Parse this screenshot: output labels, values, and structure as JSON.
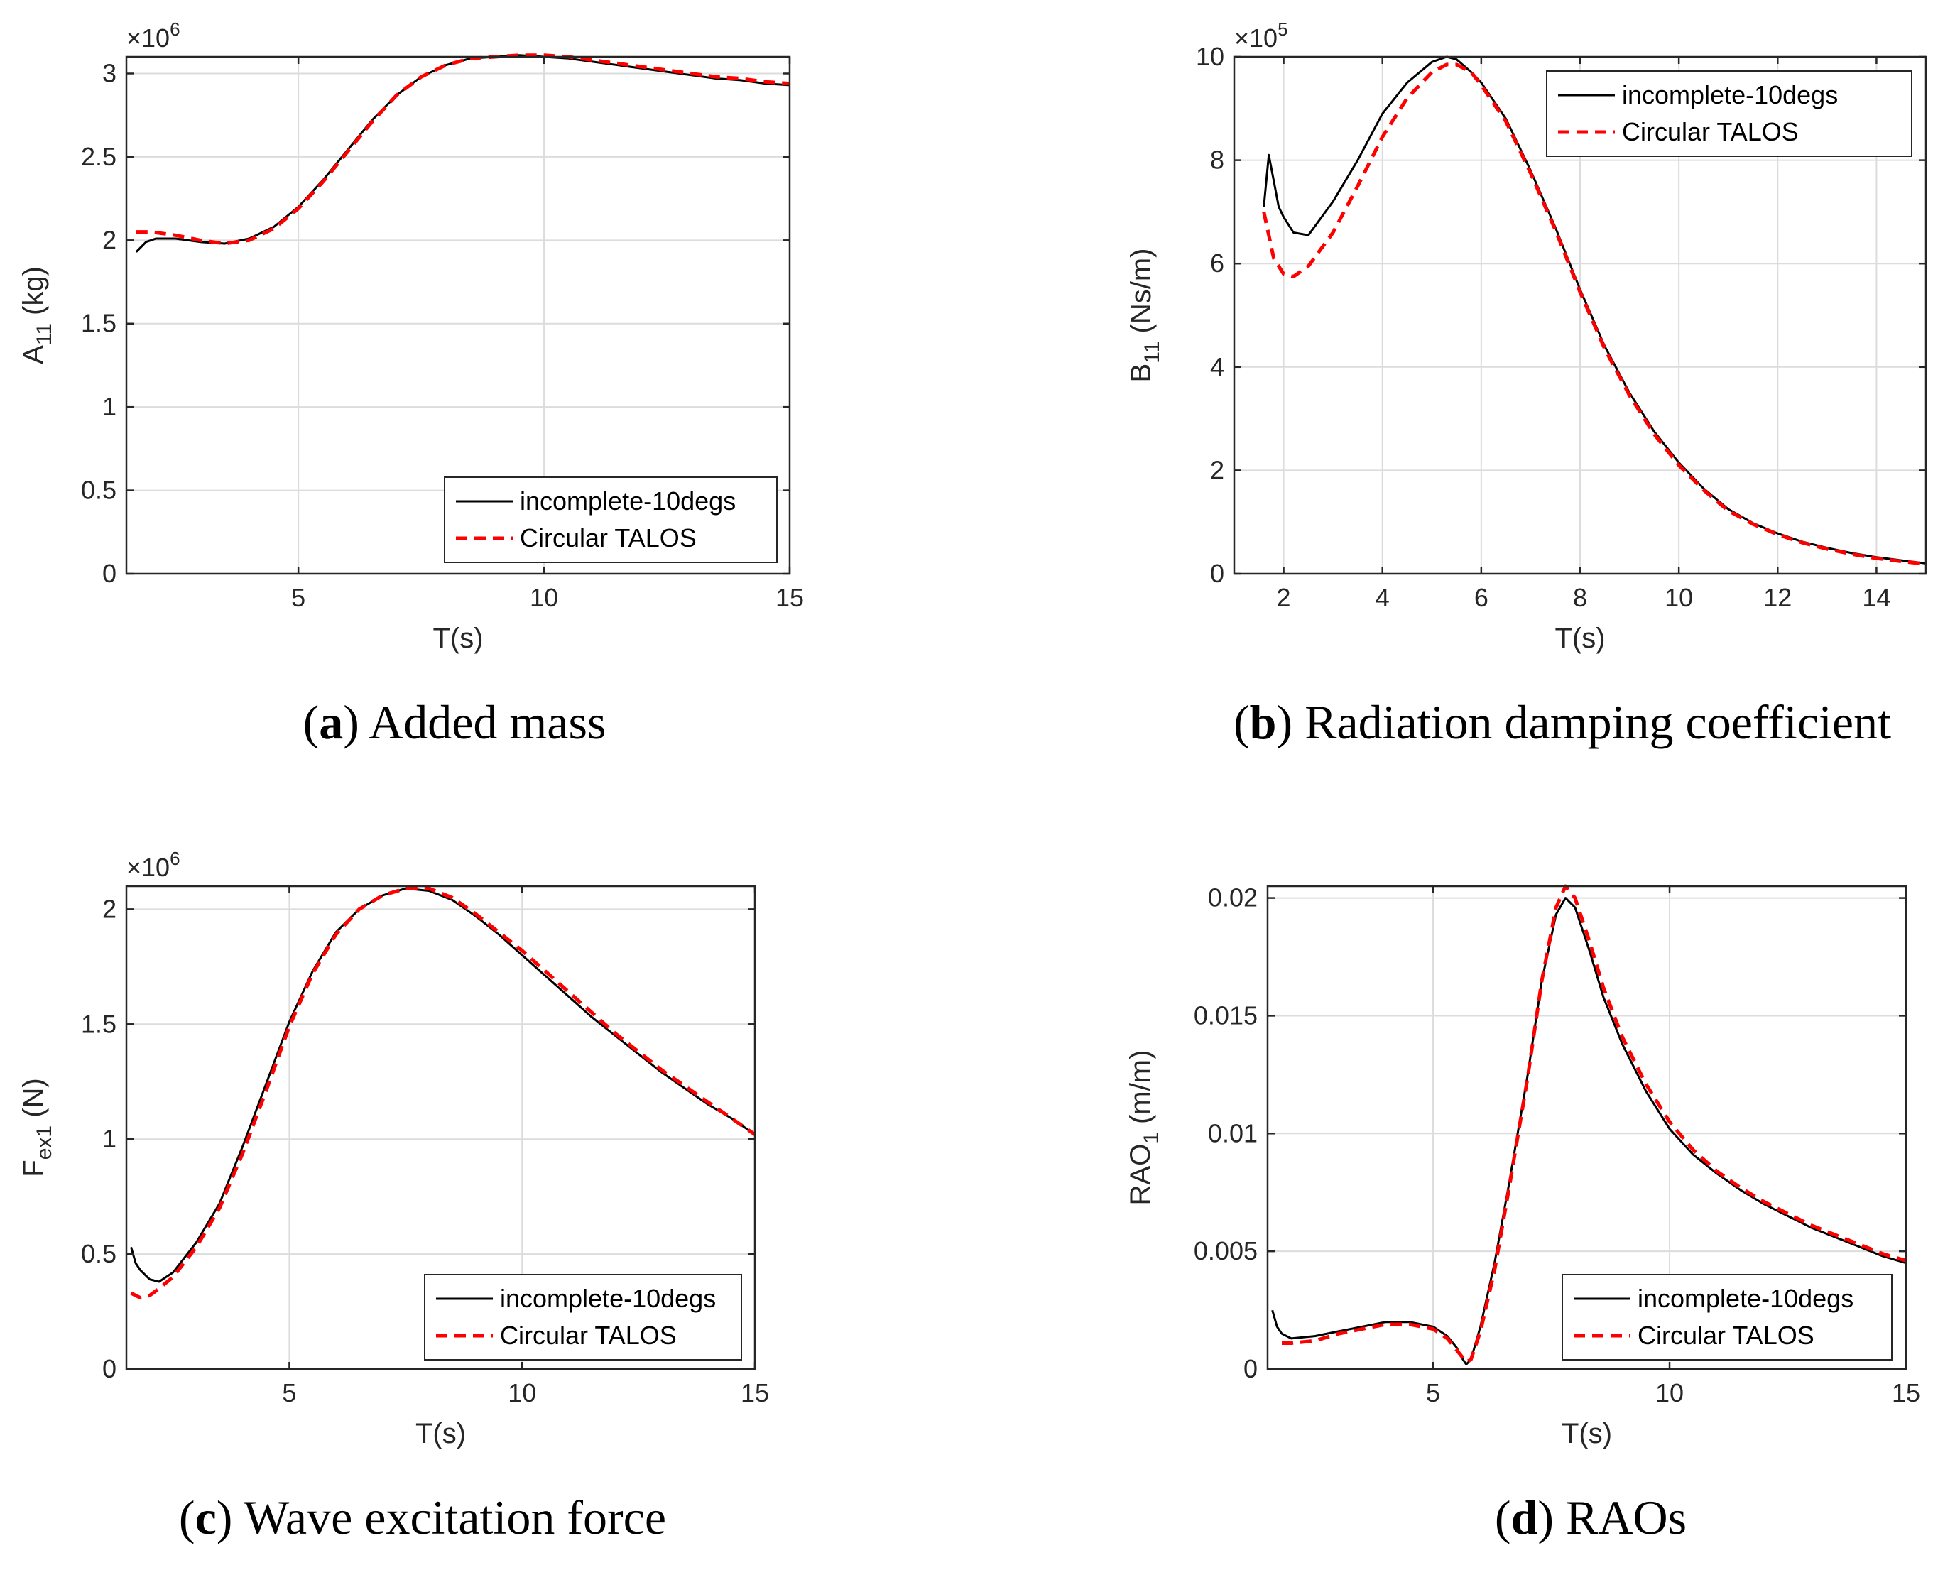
{
  "chart_data": [
    {
      "type": "line",
      "id": "a",
      "caption_letter": "a",
      "caption_text": "Added mass",
      "ylabel_main": "A",
      "ylabel_sub": "11",
      "ylabel_unit": " (kg)",
      "xlabel": "T(s)",
      "exponent_base": "×10",
      "exponent_power": "6",
      "xlim": [
        1.5,
        15
      ],
      "ylim": [
        0,
        3.1
      ],
      "xticks": [
        5,
        10,
        15
      ],
      "xtick_labels": [
        "5",
        "10",
        "15"
      ],
      "yticks": [
        0,
        0.5,
        1,
        1.5,
        2,
        2.5,
        3
      ],
      "ytick_labels": [
        "0",
        "0.5",
        "1",
        "1.5",
        "2",
        "2.5",
        "3"
      ],
      "legend_position": "bottom-right",
      "series": [
        {
          "name": "incomplete-10degs",
          "color": "#000000",
          "dash": "solid",
          "x": [
            1.7,
            1.9,
            2.1,
            2.5,
            3.0,
            3.5,
            4.0,
            4.5,
            5.0,
            5.5,
            6.0,
            6.5,
            7.0,
            7.5,
            8.0,
            8.5,
            9.0,
            9.5,
            10.0,
            10.5,
            11.0,
            11.5,
            12.0,
            12.5,
            13.0,
            13.5,
            14.0,
            14.5,
            15.0
          ],
          "y": [
            1.93,
            1.99,
            2.01,
            2.01,
            1.99,
            1.98,
            2.01,
            2.08,
            2.2,
            2.36,
            2.54,
            2.72,
            2.87,
            2.98,
            3.05,
            3.09,
            3.1,
            3.11,
            3.1,
            3.09,
            3.07,
            3.05,
            3.03,
            3.01,
            2.99,
            2.97,
            2.96,
            2.94,
            2.93
          ]
        },
        {
          "name": "Circular TALOS",
          "color": "#ff0000",
          "dash": "dashed",
          "x": [
            1.7,
            2.0,
            2.5,
            3.0,
            3.5,
            4.0,
            4.5,
            5.0,
            5.5,
            6.0,
            6.5,
            7.0,
            7.5,
            8.0,
            8.5,
            9.0,
            9.5,
            10.0,
            10.5,
            11.0,
            11.5,
            12.0,
            12.5,
            13.0,
            13.5,
            14.0,
            14.5,
            15.0
          ],
          "y": [
            2.05,
            2.05,
            2.03,
            2.0,
            1.98,
            2.0,
            2.07,
            2.19,
            2.35,
            2.53,
            2.71,
            2.87,
            2.98,
            3.05,
            3.09,
            3.1,
            3.11,
            3.11,
            3.1,
            3.08,
            3.06,
            3.04,
            3.02,
            3.0,
            2.98,
            2.97,
            2.95,
            2.94
          ]
        }
      ]
    },
    {
      "type": "line",
      "id": "b",
      "caption_letter": "b",
      "caption_text": "Radiation damping coefficient",
      "ylabel_main": "B",
      "ylabel_sub": "11",
      "ylabel_unit": " (Ns/m)",
      "xlabel": "T(s)",
      "exponent_base": "×10",
      "exponent_power": "5",
      "xlim": [
        1,
        15
      ],
      "ylim": [
        0,
        10
      ],
      "xticks": [
        2,
        4,
        6,
        8,
        10,
        12,
        14
      ],
      "xtick_labels": [
        "2",
        "4",
        "6",
        "8",
        "10",
        "12",
        "14"
      ],
      "yticks": [
        0,
        2,
        4,
        6,
        8,
        10
      ],
      "ytick_labels": [
        "0",
        "2",
        "4",
        "6",
        "8",
        "10"
      ],
      "legend_position": "top-right",
      "series": [
        {
          "name": "incomplete-10degs",
          "color": "#000000",
          "dash": "solid",
          "x": [
            1.6,
            1.7,
            1.8,
            1.9,
            2.0,
            2.2,
            2.5,
            3.0,
            3.5,
            4.0,
            4.5,
            5.0,
            5.3,
            5.5,
            5.8,
            6.0,
            6.5,
            7.0,
            7.5,
            8.0,
            8.5,
            9.0,
            9.5,
            10.0,
            10.5,
            11.0,
            11.5,
            12.0,
            12.5,
            13.0,
            13.5,
            14.0,
            14.5,
            15.0
          ],
          "y": [
            7.1,
            8.1,
            7.6,
            7.1,
            6.9,
            6.6,
            6.55,
            7.2,
            8.0,
            8.9,
            9.5,
            9.9,
            10.0,
            9.95,
            9.7,
            9.5,
            8.8,
            7.8,
            6.7,
            5.5,
            4.4,
            3.5,
            2.75,
            2.15,
            1.65,
            1.25,
            0.98,
            0.78,
            0.62,
            0.5,
            0.4,
            0.32,
            0.26,
            0.2
          ]
        },
        {
          "name": "Circular TALOS",
          "color": "#ff0000",
          "dash": "dashed",
          "x": [
            1.6,
            1.8,
            2.0,
            2.2,
            2.5,
            3.0,
            3.5,
            4.0,
            4.5,
            5.0,
            5.3,
            5.5,
            5.8,
            6.0,
            6.5,
            7.0,
            7.5,
            8.0,
            8.5,
            9.0,
            9.5,
            10.0,
            10.5,
            11.0,
            11.5,
            12.0,
            12.5,
            13.0,
            13.5,
            14.0,
            14.5,
            15.0
          ],
          "y": [
            7.0,
            6.1,
            5.8,
            5.75,
            5.95,
            6.6,
            7.5,
            8.45,
            9.2,
            9.7,
            9.85,
            9.85,
            9.7,
            9.45,
            8.75,
            7.75,
            6.65,
            5.45,
            4.35,
            3.45,
            2.7,
            2.1,
            1.62,
            1.22,
            0.96,
            0.76,
            0.6,
            0.48,
            0.38,
            0.3,
            0.24,
            0.19
          ]
        }
      ]
    },
    {
      "type": "line",
      "id": "c",
      "caption_letter": "c",
      "caption_text": "Wave excitation force",
      "ylabel_main": "F",
      "ylabel_sub": "ex1",
      "ylabel_unit": " (N)",
      "xlabel": "T(s)",
      "exponent_base": "×10",
      "exponent_power": "6",
      "xlim": [
        1.5,
        15
      ],
      "ylim": [
        0,
        2.1
      ],
      "xticks": [
        5,
        10,
        15
      ],
      "xtick_labels": [
        "5",
        "10",
        "15"
      ],
      "yticks": [
        0,
        0.5,
        1,
        1.5,
        2
      ],
      "ytick_labels": [
        "0",
        "0.5",
        "1",
        "1.5",
        "2"
      ],
      "legend_position": "bottom-right",
      "series": [
        {
          "name": "incomplete-10degs",
          "color": "#000000",
          "dash": "solid",
          "x": [
            1.6,
            1.7,
            1.8,
            2.0,
            2.2,
            2.5,
            3.0,
            3.5,
            4.0,
            4.5,
            5.0,
            5.5,
            6.0,
            6.5,
            7.0,
            7.5,
            8.0,
            8.5,
            9.0,
            9.5,
            10.0,
            10.5,
            11.0,
            11.5,
            12.0,
            12.5,
            13.0,
            13.5,
            14.0,
            14.5,
            15.0
          ],
          "y": [
            0.53,
            0.46,
            0.43,
            0.39,
            0.38,
            0.42,
            0.55,
            0.72,
            0.97,
            1.24,
            1.51,
            1.73,
            1.9,
            2.0,
            2.06,
            2.09,
            2.08,
            2.04,
            1.97,
            1.89,
            1.8,
            1.71,
            1.62,
            1.53,
            1.45,
            1.37,
            1.29,
            1.22,
            1.15,
            1.09,
            1.02
          ]
        },
        {
          "name": "Circular TALOS",
          "color": "#ff0000",
          "dash": "dashed",
          "x": [
            1.6,
            1.8,
            2.0,
            2.2,
            2.5,
            3.0,
            3.5,
            4.0,
            4.5,
            5.0,
            5.5,
            6.0,
            6.5,
            7.0,
            7.5,
            8.0,
            8.5,
            9.0,
            9.5,
            10.0,
            10.5,
            11.0,
            11.5,
            12.0,
            12.5,
            13.0,
            13.5,
            14.0,
            14.5,
            15.0
          ],
          "y": [
            0.33,
            0.31,
            0.32,
            0.35,
            0.4,
            0.53,
            0.7,
            0.94,
            1.21,
            1.49,
            1.72,
            1.89,
            2.0,
            2.06,
            2.09,
            2.09,
            2.05,
            1.98,
            1.9,
            1.82,
            1.73,
            1.64,
            1.55,
            1.46,
            1.38,
            1.3,
            1.23,
            1.16,
            1.09,
            1.02
          ]
        }
      ]
    },
    {
      "type": "line",
      "id": "d",
      "caption_letter": "d",
      "caption_text": "RAOs",
      "ylabel_main": "RAO",
      "ylabel_sub": "1",
      "ylabel_unit": " (m/m)",
      "xlabel": "T(s)",
      "exponent_base": "",
      "exponent_power": "",
      "xlim": [
        1.5,
        15
      ],
      "ylim": [
        0,
        0.0205
      ],
      "xticks": [
        5,
        10,
        15
      ],
      "xtick_labels": [
        "5",
        "10",
        "15"
      ],
      "yticks": [
        0,
        0.005,
        0.01,
        0.015,
        0.02
      ],
      "ytick_labels": [
        "0",
        "0.005",
        "0.01",
        "0.015",
        "0.02"
      ],
      "legend_position": "bottom-right",
      "series": [
        {
          "name": "incomplete-10degs",
          "color": "#000000",
          "dash": "solid",
          "x": [
            1.6,
            1.7,
            1.8,
            2.0,
            2.5,
            3.0,
            3.5,
            4.0,
            4.5,
            5.0,
            5.3,
            5.5,
            5.6,
            5.7,
            5.8,
            6.0,
            6.3,
            6.6,
            7.0,
            7.3,
            7.6,
            7.8,
            8.0,
            8.3,
            8.6,
            9.0,
            9.5,
            10.0,
            10.5,
            11.0,
            11.5,
            12.0,
            12.5,
            13.0,
            13.5,
            14.0,
            14.5,
            15.0
          ],
          "y": [
            0.0025,
            0.0018,
            0.0015,
            0.0013,
            0.0014,
            0.0016,
            0.0018,
            0.002,
            0.002,
            0.0018,
            0.0014,
            0.0009,
            0.0005,
            0.0002,
            0.0004,
            0.0018,
            0.0045,
            0.0078,
            0.0125,
            0.0165,
            0.0193,
            0.02,
            0.0196,
            0.0178,
            0.0158,
            0.0138,
            0.0118,
            0.0102,
            0.0091,
            0.0083,
            0.0076,
            0.007,
            0.0065,
            0.006,
            0.0056,
            0.0052,
            0.0048,
            0.0045
          ]
        },
        {
          "name": "Circular TALOS",
          "color": "#ff0000",
          "dash": "dashed",
          "x": [
            1.8,
            2.0,
            2.5,
            3.0,
            3.5,
            4.0,
            4.5,
            5.0,
            5.3,
            5.5,
            5.7,
            5.8,
            6.0,
            6.3,
            6.6,
            7.0,
            7.3,
            7.6,
            7.8,
            8.0,
            8.3,
            8.6,
            9.0,
            9.5,
            10.0,
            10.5,
            11.0,
            11.5,
            12.0,
            12.5,
            13.0,
            13.5,
            14.0,
            14.5,
            15.0
          ],
          "y": [
            0.0011,
            0.0011,
            0.0012,
            0.0015,
            0.0017,
            0.0019,
            0.0019,
            0.0017,
            0.0013,
            0.0008,
            0.0003,
            0.0004,
            0.0016,
            0.0042,
            0.0076,
            0.0124,
            0.0165,
            0.0196,
            0.0205,
            0.02,
            0.0182,
            0.0162,
            0.0141,
            0.0121,
            0.0105,
            0.0093,
            0.0084,
            0.0077,
            0.0071,
            0.0066,
            0.0061,
            0.0057,
            0.0053,
            0.0049,
            0.0046
          ]
        }
      ]
    }
  ]
}
